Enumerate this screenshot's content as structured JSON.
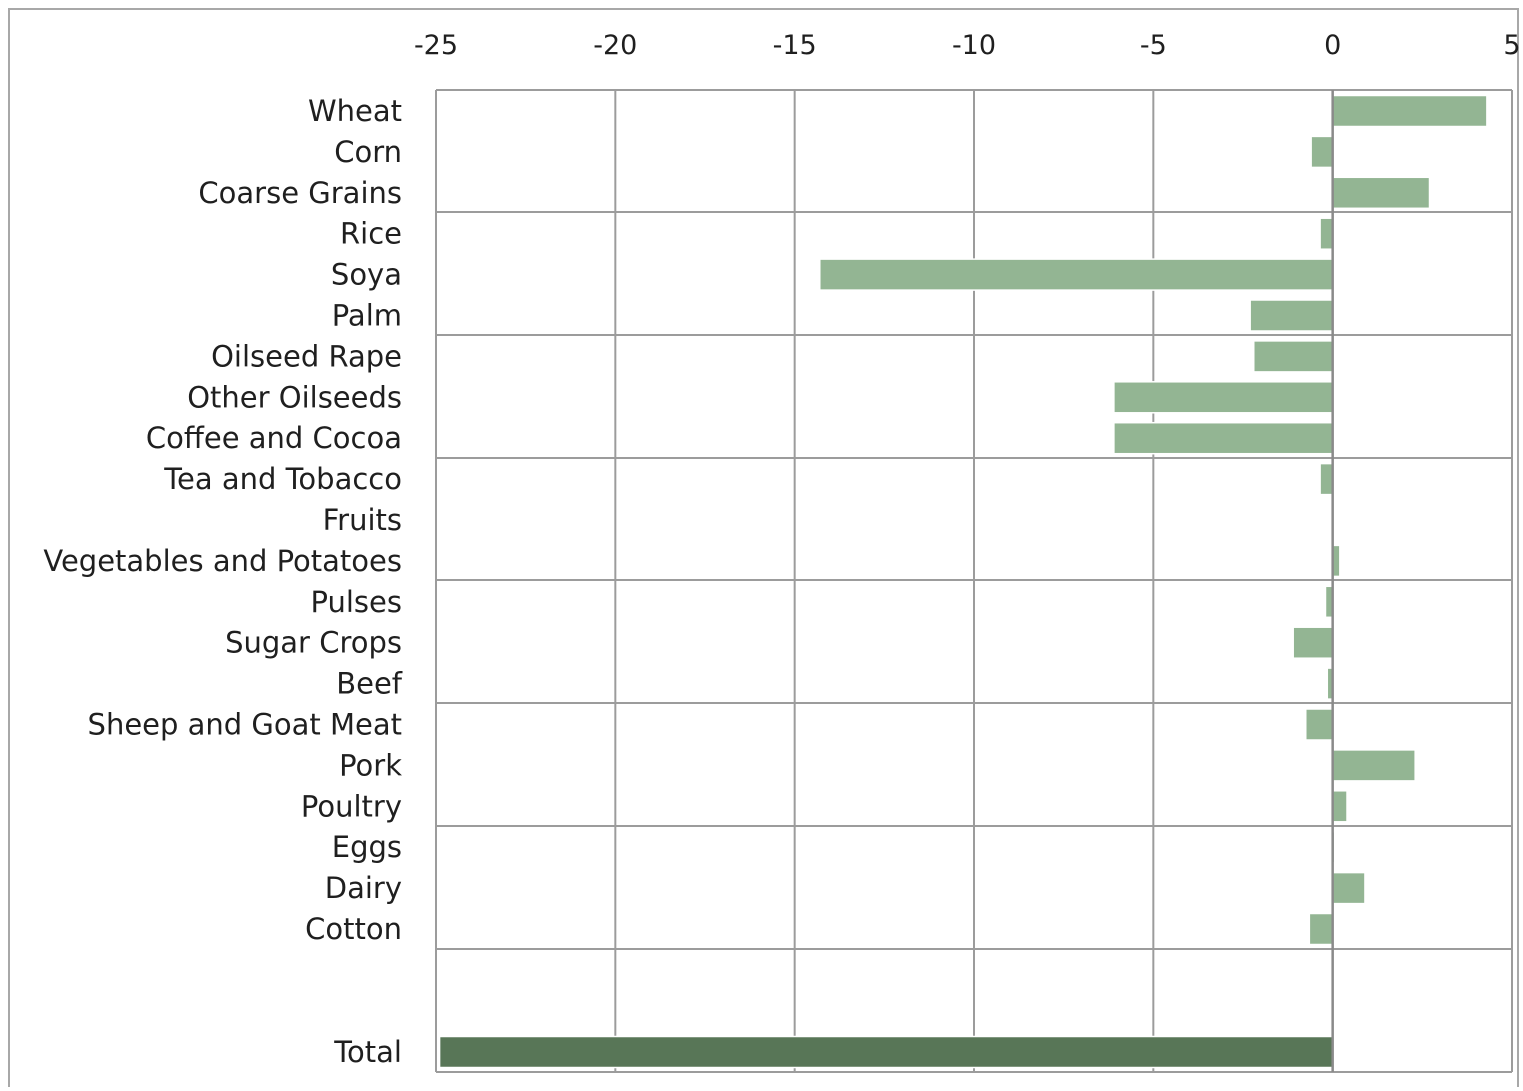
{
  "chart_data": {
    "type": "bar",
    "orientation": "horizontal",
    "title": "",
    "xlabel": "",
    "ylabel": "",
    "xlim": [
      -25,
      5
    ],
    "x_ticks": [
      -25,
      -20,
      -15,
      -10,
      -5,
      0,
      5
    ],
    "x_tick_labels": [
      "-25",
      "-20",
      "-15",
      "-10",
      "-5",
      "0",
      "5"
    ],
    "x_axis_position": "top",
    "grid": true,
    "legend": "none",
    "categories": [
      "Wheat",
      "Corn",
      "Coarse Grains",
      "Rice",
      "Soya",
      "Palm",
      "Oilseed Rape",
      "Other Oilseeds",
      "Coffee and Cocoa",
      "Tea and Tobacco",
      "Fruits",
      "Vegetables and Potatoes",
      "Pulses",
      "Sugar Crops",
      "Beef",
      "Sheep and Goat Meat",
      "Pork",
      "Poultry",
      "Eggs",
      "Dairy",
      "Cotton",
      "",
      "Total"
    ],
    "values": [
      4.3,
      -0.6,
      2.7,
      -0.35,
      -14.3,
      -2.3,
      -2.2,
      -6.1,
      -6.1,
      -0.35,
      -0.05,
      0.2,
      -0.2,
      -1.1,
      -0.15,
      -0.75,
      2.3,
      0.4,
      0.05,
      0.9,
      -0.65,
      null,
      -24.9
    ],
    "colors": {
      "bar": "#93b593",
      "total_bar": "#587657",
      "bar_border": "#ffffff",
      "grid": "#9c9c9c",
      "zero_line": "#8a8a8a",
      "frame": "#a8a8a8"
    }
  }
}
